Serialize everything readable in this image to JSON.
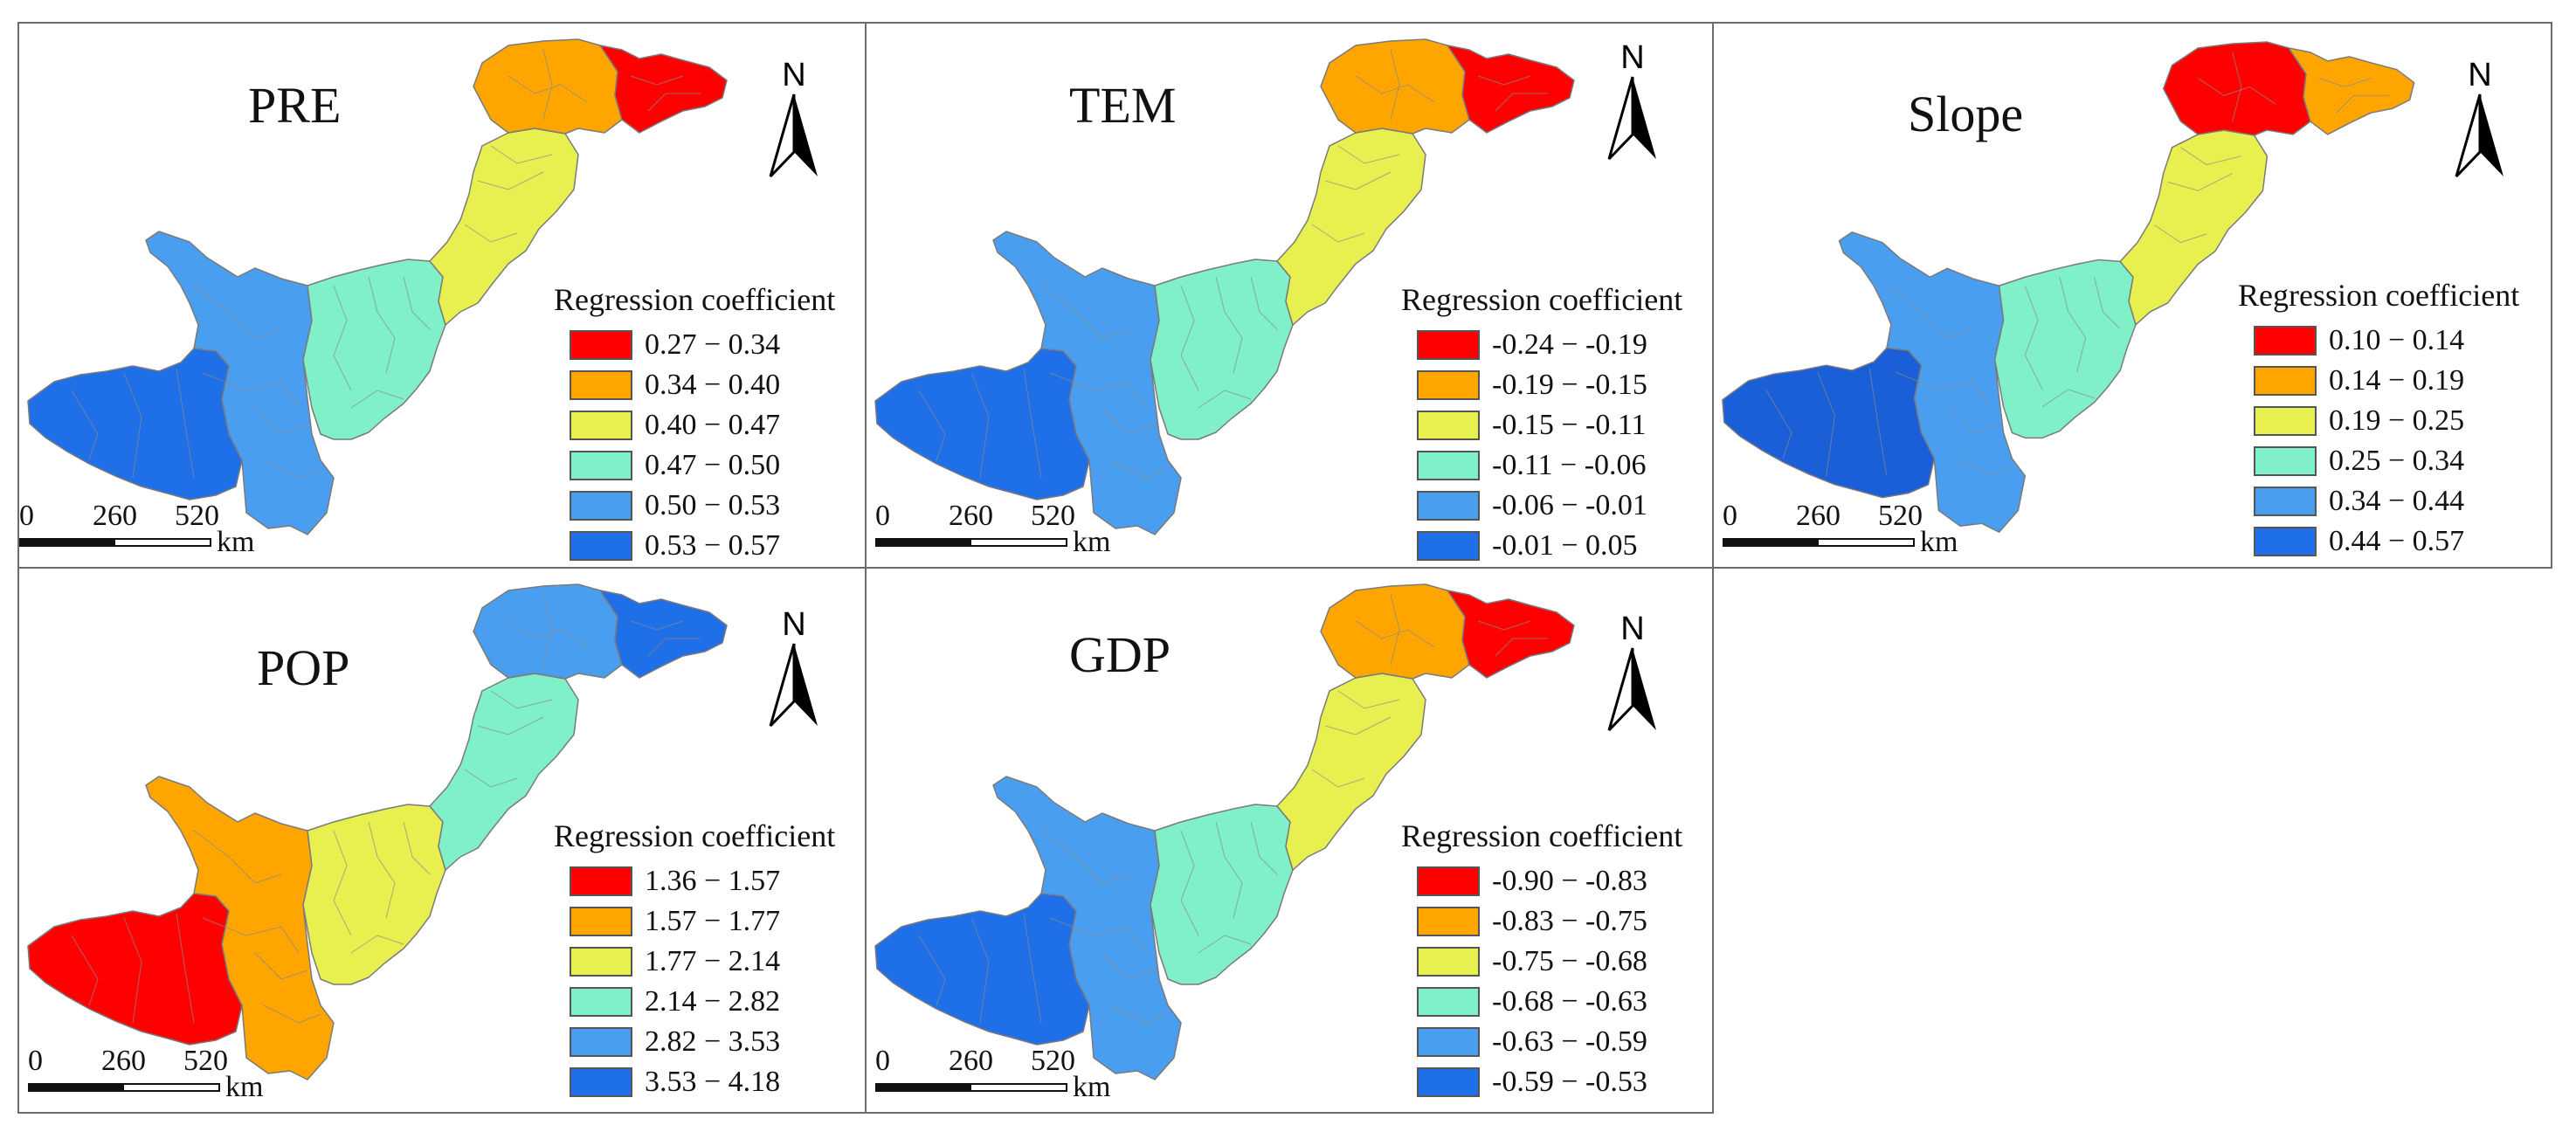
{
  "legend_title": "Regression coefficient",
  "scale": {
    "ticks": [
      "0",
      "260",
      "520"
    ],
    "unit": "km"
  },
  "north_label": "N",
  "colors": [
    "#ff0000",
    "#ffa500",
    "#e8f050",
    "#7ff0c8",
    "#4a9ef0",
    "#1f6fe8"
  ],
  "panels": [
    {
      "title": "PRE",
      "classes": [
        "0.27 − 0.34",
        "0.34 − 0.40",
        "0.40 − 0.47",
        "0.47 − 0.50",
        "0.50 − 0.53",
        "0.53 − 0.57"
      ],
      "zone_colors": {
        "far_west": "#1f6fe8",
        "west": "#4a9ef0",
        "central": "#7ff0c8",
        "central_east": "#e8f050",
        "north": "#ffa500",
        "northeast": "#ff0000"
      }
    },
    {
      "title": "TEM",
      "classes": [
        "-0.24 − -0.19",
        "-0.19 − -0.15",
        "-0.15 − -0.11",
        "-0.11 − -0.06",
        "-0.06 − -0.01",
        "-0.01 − 0.05"
      ],
      "zone_colors": {
        "far_west": "#1f6fe8",
        "west": "#4a9ef0",
        "central": "#7ff0c8",
        "central_east": "#e8f050",
        "north": "#ffa500",
        "northeast": "#ff0000"
      }
    },
    {
      "title": "Slope",
      "classes": [
        "0.10 − 0.14",
        "0.14 − 0.19",
        "0.19 − 0.25",
        "0.25 − 0.34",
        "0.34 − 0.44",
        "0.44 − 0.57"
      ],
      "zone_colors": {
        "far_west": "#1a5fd8",
        "west": "#4a9ef0",
        "central": "#7ff0c8",
        "central_east": "#e8f050",
        "north": "#ff0000",
        "northeast": "#ffa500"
      }
    },
    {
      "title": "POP",
      "classes": [
        "1.36 − 1.57",
        "1.57 − 1.77",
        "1.77 − 2.14",
        "2.14 − 2.82",
        "2.82 − 3.53",
        "3.53 − 4.18"
      ],
      "zone_colors": {
        "far_west": "#ff0000",
        "west": "#ffa500",
        "central": "#e8f050",
        "central_east": "#7ff0c8",
        "north": "#4a9ef0",
        "northeast": "#1f6fe8"
      }
    },
    {
      "title": "GDP",
      "classes": [
        "-0.90 − -0.83",
        "-0.83 − -0.75",
        "-0.75 − -0.68",
        "-0.68 − -0.63",
        "-0.63 − -0.59",
        "-0.59 − -0.53"
      ],
      "zone_colors": {
        "far_west": "#1f6fe8",
        "west": "#4a9ef0",
        "central": "#7ff0c8",
        "central_east": "#e8f050",
        "north": "#ffa500",
        "northeast": "#ff0000"
      }
    }
  ]
}
